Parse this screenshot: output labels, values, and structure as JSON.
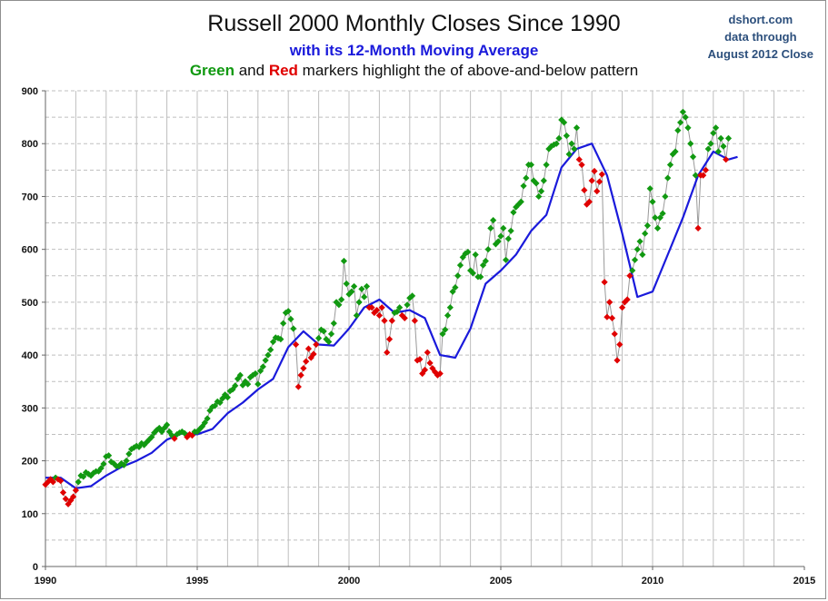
{
  "title": "Russell 2000 Monthly Closes Since 1990",
  "subtitle": "with  its 12-Month Moving Average",
  "subtitle2": {
    "green_word": "Green",
    "and_word": "and",
    "red_word": "Red",
    "rest": "markers highlight the of above-and-below pattern"
  },
  "source": {
    "line1": "dshort.com",
    "line2": "data through",
    "line3": "August 2012 Close"
  },
  "colors": {
    "above": "#119911",
    "below": "#e00000",
    "moving_average": "#1a1adb",
    "close_line": "#999999",
    "grid": "#bfbfbf",
    "source_text": "#2c4f7c"
  },
  "chart_data": {
    "type": "line",
    "xlim": [
      1990,
      2015
    ],
    "ylim": [
      0,
      900
    ],
    "x_ticks": [
      "1990",
      "1995",
      "2000",
      "2005",
      "2010",
      "2015"
    ],
    "y_ticks": [
      "0",
      "100",
      "200",
      "300",
      "400",
      "500",
      "600",
      "700",
      "800",
      "900"
    ],
    "grid": "vertical solid each year, horizontal dashed each 50",
    "legend": "none",
    "series": [
      {
        "role": "close",
        "start": 1990.0,
        "step_months": 1,
        "values": [
          155,
          160,
          165,
          160,
          168,
          165,
          162,
          140,
          128,
          118,
          125,
          132,
          144,
          160,
          172,
          170,
          178,
          175,
          172,
          177,
          180,
          180,
          186,
          194,
          208,
          210,
          198,
          195,
          190,
          190,
          195,
          192,
          200,
          213,
          222,
          225,
          228,
          226,
          233,
          230,
          235,
          240,
          245,
          253,
          258,
          262,
          255,
          262,
          268,
          255,
          248,
          242,
          250,
          253,
          255,
          252,
          245,
          250,
          248,
          255,
          255,
          260,
          265,
          272,
          280,
          295,
          302,
          304,
          312,
          310,
          318,
          325,
          320,
          332,
          335,
          342,
          355,
          362,
          343,
          350,
          345,
          358,
          362,
          365,
          345,
          370,
          378,
          390,
          400,
          410,
          425,
          433,
          432,
          430,
          460,
          480,
          483,
          468,
          450,
          420,
          340,
          362,
          375,
          388,
          412,
          395,
          402,
          420,
          432,
          448,
          445,
          430,
          425,
          440,
          460,
          500,
          495,
          505,
          578,
          535,
          515,
          520,
          530,
          475,
          500,
          525,
          510,
          530,
          490,
          490,
          480,
          485,
          475,
          490,
          465,
          405,
          430,
          465,
          480,
          482,
          490,
          475,
          470,
          495,
          508,
          512,
          465,
          390,
          392,
          365,
          372,
          405,
          385,
          375,
          368,
          362,
          365,
          440,
          448,
          475,
          490,
          520,
          528,
          550,
          570,
          585,
          592,
          595,
          560,
          555,
          590,
          548,
          548,
          570,
          578,
          600,
          640,
          655,
          610,
          615,
          625,
          640,
          580,
          620,
          635,
          670,
          680,
          685,
          690,
          720,
          735,
          760,
          760,
          730,
          725,
          700,
          710,
          730,
          760,
          790,
          795,
          798,
          800,
          810,
          845,
          840,
          815,
          780,
          800,
          790,
          830,
          770,
          760,
          712,
          685,
          690,
          730,
          748,
          710,
          728,
          742,
          538,
          472,
          500,
          470,
          440,
          390,
          420,
          490,
          500,
          505,
          550,
          560,
          580,
          600,
          615,
          590,
          630,
          645,
          715,
          690,
          660,
          640,
          660,
          668,
          700,
          735,
          760,
          780,
          785,
          825,
          840,
          860,
          850,
          830,
          800,
          775,
          740,
          640,
          740,
          740,
          750,
          790,
          800,
          820,
          830,
          785,
          810,
          795,
          770,
          810
        ]
      },
      {
        "role": "moving_average",
        "name": "12-Month Moving Average",
        "points": [
          [
            1990.0,
            168
          ],
          [
            1990.5,
            168
          ],
          [
            1991.0,
            148
          ],
          [
            1991.5,
            152
          ],
          [
            1992.0,
            172
          ],
          [
            1992.5,
            188
          ],
          [
            1993.0,
            200
          ],
          [
            1993.5,
            215
          ],
          [
            1994.0,
            240
          ],
          [
            1994.5,
            252
          ],
          [
            1995.0,
            250
          ],
          [
            1995.5,
            260
          ],
          [
            1996.0,
            290
          ],
          [
            1996.5,
            310
          ],
          [
            1997.0,
            335
          ],
          [
            1997.5,
            355
          ],
          [
            1998.0,
            415
          ],
          [
            1998.5,
            445
          ],
          [
            1999.0,
            420
          ],
          [
            1999.5,
            418
          ],
          [
            2000.0,
            450
          ],
          [
            2000.5,
            490
          ],
          [
            2001.0,
            505
          ],
          [
            2001.5,
            480
          ],
          [
            2002.0,
            485
          ],
          [
            2002.5,
            470
          ],
          [
            2003.0,
            400
          ],
          [
            2003.5,
            395
          ],
          [
            2004.0,
            450
          ],
          [
            2004.5,
            535
          ],
          [
            2005.0,
            560
          ],
          [
            2005.5,
            590
          ],
          [
            2006.0,
            635
          ],
          [
            2006.5,
            665
          ],
          [
            2007.0,
            755
          ],
          [
            2007.5,
            790
          ],
          [
            2008.0,
            800
          ],
          [
            2008.5,
            740
          ],
          [
            2009.0,
            630
          ],
          [
            2009.5,
            510
          ],
          [
            2010.0,
            520
          ],
          [
            2010.5,
            590
          ],
          [
            2011.0,
            660
          ],
          [
            2011.5,
            740
          ],
          [
            2012.0,
            785
          ],
          [
            2012.5,
            770
          ],
          [
            2012.8,
            775
          ]
        ]
      }
    ]
  }
}
